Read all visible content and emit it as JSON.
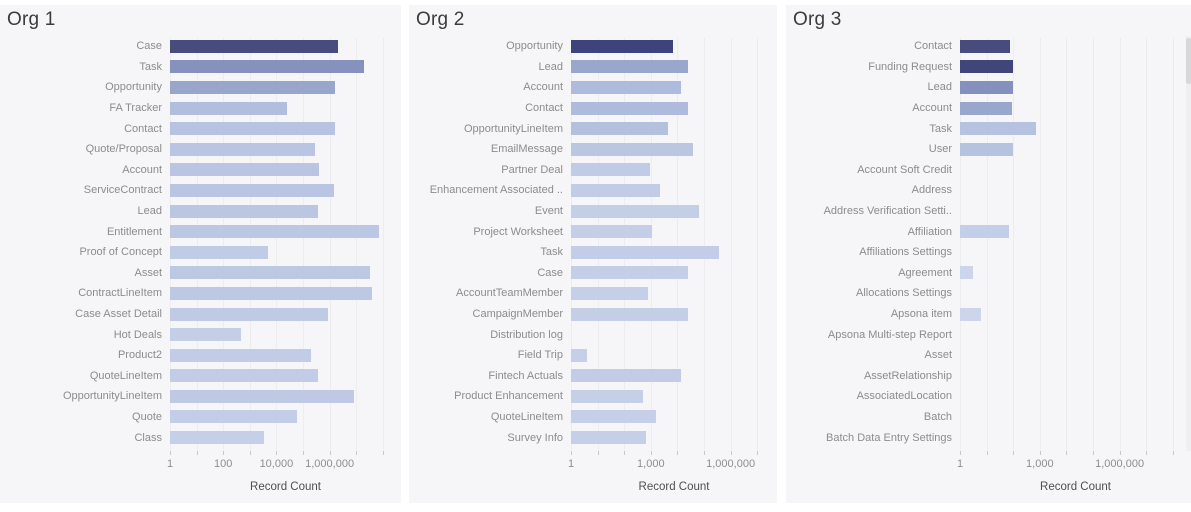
{
  "theme": {
    "panel_background": "#f6f6f8",
    "gridline_color": "#ededf0",
    "title_color": "#3b3b3b",
    "label_color": "#8c8c8c",
    "axis_title_color": "#4f4f4f",
    "dark_bar_color": "#474c7d",
    "light_bar_color": "#c5cfe8"
  },
  "chart_data": [
    {
      "type": "bar",
      "orientation": "horizontal",
      "title": "Org 1",
      "xlabel": "Record Count",
      "x_scale": "log",
      "x_range_decades": [
        0,
        8.6
      ],
      "grid": true,
      "x_axis_ticks": [
        {
          "label": "1",
          "decade": 0
        },
        {
          "label": "100",
          "decade": 2
        },
        {
          "label": "10,000",
          "decade": 4
        },
        {
          "label": "1,000,000",
          "decade": 6
        }
      ],
      "categories": [
        "Case",
        "Task",
        "Opportunity",
        "FA Tracker",
        "Contact",
        "Quote/Proposal",
        "Account",
        "ServiceContract",
        "Lead",
        "Entitlement",
        "Proof of Concept",
        "Asset",
        "ContractLineItem",
        "Case Asset Detail",
        "Hot Deals",
        "Product2",
        "QuoteLineItem",
        "OpportunityLineItem",
        "Quote",
        "Class"
      ],
      "values": [
        2000000,
        20000000,
        1600000,
        25000,
        1600000,
        280000,
        400000,
        1400000,
        370000,
        70000000,
        4700,
        32000000,
        40000000,
        900000,
        450,
        200000,
        370000,
        8500000,
        60000,
        3300
      ],
      "bar_colors": [
        "#474c7d",
        "#8691bd",
        "#99a6cb",
        "#b1bedd",
        "#b7c3e1",
        "#b9c5e2",
        "#b9c5e2",
        "#b9c5e2",
        "#bac6e2",
        "#bcc7e3",
        "#c0cbe5",
        "#bdc8e3",
        "#bdc8e3",
        "#bfcae4",
        "#c4cee7",
        "#c2cce6",
        "#c2cce6",
        "#bfc9e4",
        "#c3cde7",
        "#c5cfe8"
      ]
    },
    {
      "type": "bar",
      "orientation": "horizontal",
      "title": "Org 2",
      "xlabel": "Record Count",
      "x_scale": "log",
      "x_range_decades": [
        0,
        7.7
      ],
      "grid": true,
      "x_axis_ticks": [
        {
          "label": "1",
          "decade": 0
        },
        {
          "label": "1,000",
          "decade": 3
        },
        {
          "label": "1,000,000",
          "decade": 6
        }
      ],
      "categories": [
        "Opportunity",
        "Lead",
        "Account",
        "Contact",
        "OpportunityLineItem",
        "EmailMessage",
        "Partner Deal",
        "Enhancement Associated ..",
        "Event",
        "Project Worksheet",
        "Task",
        "Case",
        "AccountTeamMember",
        "CampaignMember",
        "Distribution log",
        "Field Trip",
        "Fintech Actuals",
        "Product Enhancement",
        "QuoteLineItem",
        "Survey Info"
      ],
      "values": [
        7000,
        25000,
        14000,
        25000,
        4500,
        37000,
        900,
        2300,
        63000,
        1100,
        380000,
        26000,
        800,
        25000,
        1,
        4,
        14000,
        520,
        1600,
        680
      ],
      "bar_colors": [
        "#3f437b",
        "#9aa7cc",
        "#aebbdc",
        "#aebbdc",
        "#b3c0de",
        "#bac6e2",
        "#c0cce6",
        "#c2cce6",
        "#c3cee7",
        "#c4cee7",
        "#c3cde7",
        "#c4cee7",
        "#c5cfe8",
        "#c4cee7",
        "#c5cfe8",
        "#c5cfe8",
        "#c2cce6",
        "#c5cfe8",
        "#c5cfe8",
        "#c5cfe8"
      ]
    },
    {
      "type": "bar",
      "orientation": "horizontal",
      "title": "Org 3",
      "xlabel": "Record Count",
      "x_scale": "log",
      "x_range_decades": [
        0,
        8.4
      ],
      "grid": true,
      "x_axis_ticks": [
        {
          "label": "1",
          "decade": 0
        },
        {
          "label": "1,000",
          "decade": 3
        },
        {
          "label": "1,000,000",
          "decade": 6
        }
      ],
      "categories": [
        "Contact",
        "Funding Request",
        "Lead",
        "Account",
        "Task",
        "User",
        "Account Soft Credit",
        "Address",
        "Address Verification Setti..",
        "Affiliation",
        "Affiliations Settings",
        "Agreement",
        "Allocations Settings",
        "Apsona item",
        "Apsona Multi-step Report",
        "Asset",
        "AssetRelationship",
        "AssociatedLocation",
        "Batch",
        "Batch Data Entry Settings"
      ],
      "values": [
        75,
        95,
        100,
        88,
        700,
        100,
        null,
        null,
        null,
        68,
        null,
        3,
        null,
        6,
        null,
        null,
        null,
        null,
        null,
        null
      ],
      "bar_colors": [
        "#474c7d",
        "#40457a",
        "#8591bd",
        "#9aa7cc",
        "#b5c2e0",
        "#b5c2e0",
        null,
        null,
        null,
        "#c3cfe8",
        null,
        "#ccd5ec",
        null,
        "#ccd5ec",
        null,
        null,
        null,
        null,
        null,
        null
      ]
    }
  ]
}
